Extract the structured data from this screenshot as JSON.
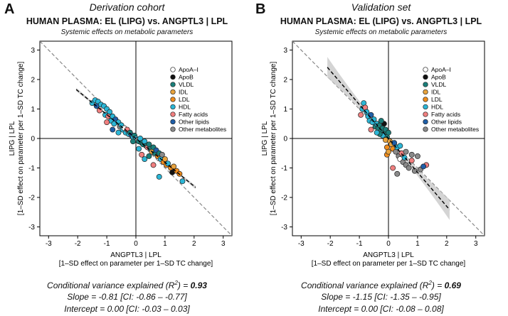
{
  "colors": {
    "ApoA-I": "#ffffff",
    "ApoB": "#111111",
    "VLDL": "#1a7f7a",
    "IDL": "#e8a33d",
    "LDL": "#f08c1c",
    "HDL": "#2bb6d6",
    "Fatty acids": "#f07f7f",
    "Other lipids": "#1f5fa8",
    "Other metabolites": "#8a8a8a"
  },
  "panels": [
    {
      "letter": "A",
      "cohort": "Derivation cohort",
      "title": "HUMAN PLASMA: EL (LIPG) vs. ANGPTL3 | LPL",
      "subtitle": "Systemic effects on metabolic parameters",
      "stat_label": "Conditional variance explained (R",
      "stat_value": "0.93",
      "slope": "Slope = -0.81 [CI: -0.86 – -0.77]",
      "intercept": "Intercept = 0.00 [CI: -0.03 – 0.03]",
      "chart_data": {
        "type": "scatter",
        "xlabel": "ANGPTL3 | LPL",
        "xlabel2": "[1–SD effect on parameter per 1–SD TC change]",
        "ylabel": "LIPG | LPL",
        "ylabel2": "[1–SD effect on parameter per 1–SD TC change]",
        "xlim": [
          -3.3,
          3.3
        ],
        "ylim": [
          -3.3,
          3.3
        ],
        "ticks": [
          -3,
          -2,
          -1,
          0,
          1,
          2,
          3
        ],
        "legend": [
          "ApoA–I",
          "ApoB",
          "VLDL",
          "IDL",
          "LDL",
          "HDL",
          "Fatty acids",
          "Other lipids",
          "Other metabolites"
        ],
        "legend_keys": [
          "ApoA-I",
          "ApoB",
          "VLDL",
          "IDL",
          "LDL",
          "HDL",
          "Fatty acids",
          "Other lipids",
          "Other metabolites"
        ],
        "fit": {
          "slope": -0.81,
          "intercept": 0.0,
          "x_range": [
            -2.05,
            2.05
          ],
          "ci_halfwidth": [
            0.02,
            0.06
          ]
        },
        "reference_line": {
          "slope": -1,
          "intercept": 0
        },
        "points": [
          {
            "x": -1.5,
            "y": 1.2,
            "group": "HDL"
          },
          {
            "x": -1.4,
            "y": 1.3,
            "group": "HDL"
          },
          {
            "x": -1.3,
            "y": 1.25,
            "group": "HDL"
          },
          {
            "x": -1.35,
            "y": 1.1,
            "group": "Other lipids"
          },
          {
            "x": -1.2,
            "y": 1.15,
            "group": "HDL"
          },
          {
            "x": -1.25,
            "y": 0.95,
            "group": "Fatty acids"
          },
          {
            "x": -1.1,
            "y": 1.1,
            "group": "HDL"
          },
          {
            "x": -1.0,
            "y": 1.0,
            "group": "HDL"
          },
          {
            "x": -1.05,
            "y": 0.8,
            "group": "HDL"
          },
          {
            "x": -0.9,
            "y": 0.9,
            "group": "HDL"
          },
          {
            "x": -0.95,
            "y": 0.75,
            "group": "Fatty acids"
          },
          {
            "x": -0.85,
            "y": 0.6,
            "group": "HDL"
          },
          {
            "x": -0.8,
            "y": 0.75,
            "group": "HDL"
          },
          {
            "x": -0.7,
            "y": 0.65,
            "group": "Other lipids"
          },
          {
            "x": -0.75,
            "y": 0.5,
            "group": "HDL"
          },
          {
            "x": -0.6,
            "y": 0.55,
            "group": "HDL"
          },
          {
            "x": -0.55,
            "y": 0.4,
            "group": "Other metabolites"
          },
          {
            "x": -0.5,
            "y": 0.45,
            "group": "HDL"
          },
          {
            "x": -0.45,
            "y": 0.3,
            "group": "HDL"
          },
          {
            "x": -0.4,
            "y": 0.35,
            "group": "ApoA-I"
          },
          {
            "x": -0.35,
            "y": 0.2,
            "group": "HDL"
          },
          {
            "x": -0.3,
            "y": 0.3,
            "group": "Fatty acids"
          },
          {
            "x": -0.25,
            "y": 0.15,
            "group": "HDL"
          },
          {
            "x": -0.2,
            "y": 0.2,
            "group": "VLDL"
          },
          {
            "x": -0.15,
            "y": 0.1,
            "group": "Other lipids"
          },
          {
            "x": -0.1,
            "y": 0.05,
            "group": "HDL"
          },
          {
            "x": -0.05,
            "y": 0.1,
            "group": "VLDL"
          },
          {
            "x": 0.0,
            "y": 0.0,
            "group": "HDL"
          },
          {
            "x": 0.05,
            "y": -0.05,
            "group": "Other metabolites"
          },
          {
            "x": 0.1,
            "y": -0.1,
            "group": "VLDL"
          },
          {
            "x": 0.15,
            "y": 0.0,
            "group": "HDL"
          },
          {
            "x": 0.2,
            "y": -0.15,
            "group": "VLDL"
          },
          {
            "x": 0.25,
            "y": -0.2,
            "group": "VLDL"
          },
          {
            "x": 0.3,
            "y": -0.1,
            "group": "HDL"
          },
          {
            "x": 0.35,
            "y": -0.25,
            "group": "VLDL"
          },
          {
            "x": 0.4,
            "y": -0.3,
            "group": "Fatty acids"
          },
          {
            "x": 0.45,
            "y": -0.2,
            "group": "VLDL"
          },
          {
            "x": 0.5,
            "y": -0.35,
            "group": "VLDL"
          },
          {
            "x": 0.55,
            "y": -0.45,
            "group": "IDL"
          },
          {
            "x": 0.6,
            "y": -0.3,
            "group": "VLDL"
          },
          {
            "x": 0.65,
            "y": -0.5,
            "group": "VLDL"
          },
          {
            "x": 0.7,
            "y": -0.4,
            "group": "Other lipids"
          },
          {
            "x": 0.75,
            "y": -0.6,
            "group": "LDL"
          },
          {
            "x": 0.8,
            "y": -0.5,
            "group": "VLDL"
          },
          {
            "x": 0.85,
            "y": -0.7,
            "group": "HDL"
          },
          {
            "x": 0.9,
            "y": -0.55,
            "group": "Other metabolites"
          },
          {
            "x": 0.95,
            "y": -0.8,
            "group": "LDL"
          },
          {
            "x": 1.0,
            "y": -0.7,
            "group": "IDL"
          },
          {
            "x": 1.05,
            "y": -0.9,
            "group": "LDL"
          },
          {
            "x": 1.1,
            "y": -0.85,
            "group": "HDL"
          },
          {
            "x": 1.2,
            "y": -1.0,
            "group": "LDL"
          },
          {
            "x": 1.25,
            "y": -1.15,
            "group": "ApoB"
          },
          {
            "x": 1.3,
            "y": -0.95,
            "group": "IDL"
          },
          {
            "x": 1.4,
            "y": -1.1,
            "group": "LDL"
          },
          {
            "x": 0.6,
            "y": -0.9,
            "group": "Fatty acids"
          },
          {
            "x": 0.3,
            "y": -0.7,
            "group": "HDL"
          },
          {
            "x": 0.2,
            "y": -0.55,
            "group": "Fatty acids"
          },
          {
            "x": -0.6,
            "y": 0.2,
            "group": "HDL"
          },
          {
            "x": -0.8,
            "y": 0.3,
            "group": "Other lipids"
          },
          {
            "x": 0.8,
            "y": -1.3,
            "group": "HDL"
          },
          {
            "x": 1.6,
            "y": -1.45,
            "group": "HDL"
          },
          {
            "x": 1.5,
            "y": -1.2,
            "group": "LDL"
          },
          {
            "x": -1.0,
            "y": 0.55,
            "group": "Fatty acids"
          },
          {
            "x": 0.45,
            "y": -0.6,
            "group": "VLDL"
          },
          {
            "x": 0.1,
            "y": -0.35,
            "group": "HDL"
          },
          {
            "x": -0.1,
            "y": -0.1,
            "group": "VLDL"
          }
        ]
      }
    },
    {
      "letter": "B",
      "cohort": "Validation set",
      "title": "HUMAN PLASMA: EL (LIPG) vs. ANGPTL3 | LPL",
      "subtitle": "Systemic effects on metabolic parameters",
      "stat_label": "Conditional variance explained (R",
      "stat_value": "0.69",
      "slope": "Slope = -1.15 [CI: -1.35 – -0.95]",
      "intercept": "Intercept = 0.00 [CI: -0.08 – 0.08]",
      "chart_data": {
        "type": "scatter",
        "xlabel": "ANGPTL3 | LPL",
        "xlabel2": "[1–SD effect on parameter per 1–SD TC change]",
        "ylabel": "LIPG | LPL",
        "ylabel2": "[1–SD effect on parameter per 1–SD TC change]",
        "xlim": [
          -3.3,
          3.3
        ],
        "ylim": [
          -3.3,
          3.3
        ],
        "ticks": [
          -3,
          -2,
          -1,
          0,
          1,
          2,
          3
        ],
        "legend": [
          "ApoA–I",
          "ApoB",
          "VLDL",
          "IDL",
          "LDL",
          "HDL",
          "Fatty acids",
          "Other lipids",
          "Other metabolites"
        ],
        "legend_keys": [
          "ApoA-I",
          "ApoB",
          "VLDL",
          "IDL",
          "LDL",
          "HDL",
          "Fatty acids",
          "Other lipids",
          "Other metabolites"
        ],
        "fit": {
          "slope": -1.15,
          "intercept": 0.0,
          "x_range": [
            -2.1,
            2.1
          ],
          "ci_halfwidth": [
            0.05,
            0.35
          ]
        },
        "reference_line": {
          "slope": -1,
          "intercept": 0
        },
        "points": [
          {
            "x": -0.85,
            "y": 1.2,
            "group": "HDL"
          },
          {
            "x": -0.9,
            "y": 1.0,
            "group": "HDL"
          },
          {
            "x": -0.8,
            "y": 1.05,
            "group": "Fatty acids"
          },
          {
            "x": -0.75,
            "y": 0.9,
            "group": "HDL"
          },
          {
            "x": -0.95,
            "y": 0.8,
            "group": "Fatty acids"
          },
          {
            "x": -0.7,
            "y": 0.75,
            "group": "HDL"
          },
          {
            "x": -0.65,
            "y": 0.6,
            "group": "HDL"
          },
          {
            "x": -0.6,
            "y": 0.8,
            "group": "Other lipids"
          },
          {
            "x": -0.55,
            "y": 0.55,
            "group": "HDL"
          },
          {
            "x": -0.5,
            "y": 0.65,
            "group": "HDL"
          },
          {
            "x": -0.45,
            "y": 0.4,
            "group": "VLDL"
          },
          {
            "x": -0.4,
            "y": 0.5,
            "group": "HDL"
          },
          {
            "x": -0.35,
            "y": 0.35,
            "group": "VLDL"
          },
          {
            "x": -0.3,
            "y": 0.45,
            "group": "VLDL"
          },
          {
            "x": -0.25,
            "y": 0.25,
            "group": "VLDL"
          },
          {
            "x": -0.2,
            "y": 0.35,
            "group": "VLDL"
          },
          {
            "x": -0.15,
            "y": 0.15,
            "group": "VLDL"
          },
          {
            "x": -0.1,
            "y": 0.3,
            "group": "VLDL"
          },
          {
            "x": -0.05,
            "y": 0.05,
            "group": "VLDL"
          },
          {
            "x": 0.0,
            "y": 0.2,
            "group": "VLDL"
          },
          {
            "x": -0.2,
            "y": 0.1,
            "group": "HDL"
          },
          {
            "x": -0.3,
            "y": 0.15,
            "group": "VLDL"
          },
          {
            "x": -0.1,
            "y": -0.05,
            "group": "IDL"
          },
          {
            "x": 0.05,
            "y": -0.1,
            "group": "IDL"
          },
          {
            "x": 0.1,
            "y": -0.2,
            "group": "IDL"
          },
          {
            "x": -0.05,
            "y": -0.3,
            "group": "LDL"
          },
          {
            "x": 0.15,
            "y": -0.35,
            "group": "LDL"
          },
          {
            "x": 0.2,
            "y": -0.15,
            "group": "Other lipids"
          },
          {
            "x": 0.25,
            "y": -0.45,
            "group": "Other metabolites"
          },
          {
            "x": 0.3,
            "y": -0.3,
            "group": "HDL"
          },
          {
            "x": 0.35,
            "y": -0.6,
            "group": "Other metabolites"
          },
          {
            "x": 0.4,
            "y": -0.7,
            "group": "ApoA-I"
          },
          {
            "x": 0.45,
            "y": -0.5,
            "group": "Fatty acids"
          },
          {
            "x": 0.5,
            "y": -0.8,
            "group": "Other metabolites"
          },
          {
            "x": 0.55,
            "y": -0.65,
            "group": "HDL"
          },
          {
            "x": 0.6,
            "y": -0.9,
            "group": "Other metabolites"
          },
          {
            "x": 0.7,
            "y": -1.0,
            "group": "Other metabolites"
          },
          {
            "x": 0.8,
            "y": -0.75,
            "group": "Fatty acids"
          },
          {
            "x": 0.9,
            "y": -1.1,
            "group": "Other metabolites"
          },
          {
            "x": 1.1,
            "y": -1.05,
            "group": "Other metabolites"
          },
          {
            "x": 1.3,
            "y": -0.9,
            "group": "Fatty acids"
          },
          {
            "x": 0.15,
            "y": -1.0,
            "group": "Fatty acids"
          },
          {
            "x": 0.3,
            "y": -1.2,
            "group": "Other metabolites"
          },
          {
            "x": 1.2,
            "y": -0.95,
            "group": "Other lipids"
          },
          {
            "x": -0.05,
            "y": -0.55,
            "group": "LDL"
          },
          {
            "x": 0.0,
            "y": -0.45,
            "group": "IDL"
          },
          {
            "x": 0.8,
            "y": -0.55,
            "group": "Other metabolites"
          },
          {
            "x": -0.15,
            "y": 0.5,
            "group": "ApoB"
          },
          {
            "x": -0.25,
            "y": 0.6,
            "group": "VLDL"
          },
          {
            "x": -0.4,
            "y": 0.2,
            "group": "HDL"
          },
          {
            "x": -0.6,
            "y": 0.3,
            "group": "Fatty acids"
          },
          {
            "x": 0.4,
            "y": -0.25,
            "group": "HDL"
          },
          {
            "x": 0.6,
            "y": -0.45,
            "group": "Other metabolites"
          },
          {
            "x": 1.0,
            "y": -0.6,
            "group": "Other metabolites"
          }
        ]
      }
    }
  ]
}
